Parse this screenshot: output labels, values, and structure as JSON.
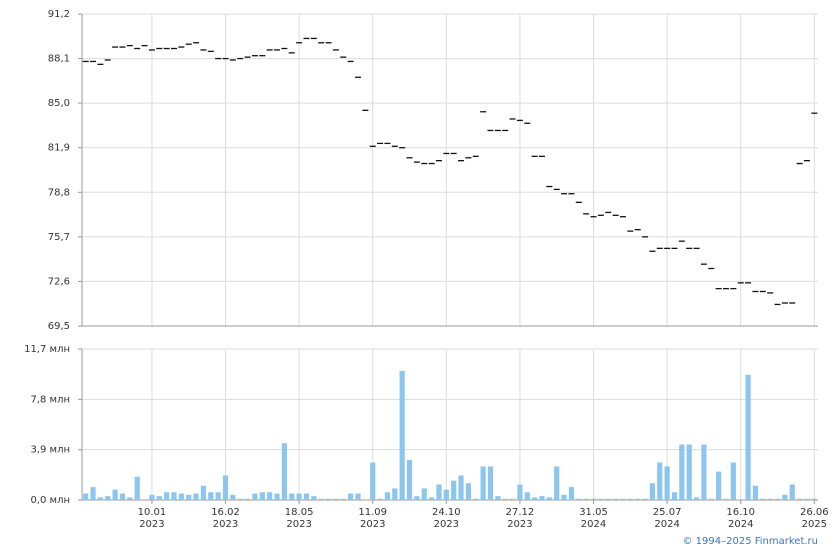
{
  "chart_data": [
    {
      "type": "scatter",
      "color": "#111111",
      "grid": true,
      "ylim": [
        69.5,
        91.2
      ],
      "yticks": [
        {
          "value": 69.5,
          "label": "69,5"
        },
        {
          "value": 72.6,
          "label": "72,6"
        },
        {
          "value": 75.7,
          "label": "75,7"
        },
        {
          "value": 78.8,
          "label": "78,8"
        },
        {
          "value": 81.9,
          "label": "81,9"
        },
        {
          "value": 85.0,
          "label": "85,0"
        },
        {
          "value": 88.1,
          "label": "88,1"
        },
        {
          "value": 91.2,
          "label": "91,2"
        }
      ],
      "values": [
        87.9,
        87.9,
        87.7,
        88.0,
        88.9,
        88.9,
        89.0,
        88.8,
        89.0,
        88.7,
        88.8,
        88.8,
        88.8,
        88.9,
        89.1,
        89.2,
        88.7,
        88.6,
        88.1,
        88.1,
        88.0,
        88.1,
        88.2,
        88.3,
        88.3,
        88.7,
        88.7,
        88.8,
        88.5,
        89.2,
        89.5,
        89.5,
        89.2,
        89.2,
        88.7,
        88.2,
        87.9,
        86.8,
        84.5,
        82.0,
        82.2,
        82.2,
        82.0,
        81.9,
        81.2,
        80.9,
        80.8,
        80.8,
        81.0,
        81.5,
        81.5,
        81.0,
        81.2,
        81.3,
        84.4,
        83.1,
        83.1,
        83.1,
        83.9,
        83.8,
        83.6,
        81.3,
        81.3,
        79.2,
        79.0,
        78.7,
        78.7,
        78.1,
        77.3,
        77.1,
        77.2,
        77.4,
        77.2,
        77.1,
        76.1,
        76.2,
        75.7,
        74.7,
        74.9,
        74.9,
        74.9,
        75.4,
        74.9,
        74.9,
        73.8,
        73.5,
        72.1,
        72.1,
        72.1,
        72.5,
        72.5,
        71.9,
        71.9,
        71.8,
        71.0,
        71.1,
        71.1,
        80.8,
        81.0,
        84.3
      ]
    },
    {
      "type": "bar",
      "color": "#8cc6ee",
      "grid": true,
      "ylim": [
        0,
        11.7
      ],
      "yticks": [
        {
          "value": 0,
          "label": "0,0 млн"
        },
        {
          "value": 3.9,
          "label": "3,9 млн"
        },
        {
          "value": 7.8,
          "label": "7,8 млн"
        },
        {
          "value": 11.7,
          "label": "11,7 млн"
        }
      ],
      "categories": [
        null,
        null,
        null,
        null,
        null,
        null,
        null,
        null,
        null,
        "10.01\n2023",
        null,
        null,
        null,
        null,
        null,
        null,
        null,
        null,
        null,
        "16.02\n2023",
        null,
        null,
        null,
        null,
        null,
        null,
        null,
        null,
        null,
        "18.05\n2023",
        null,
        null,
        null,
        null,
        null,
        null,
        null,
        null,
        null,
        "11.09\n2023",
        null,
        null,
        null,
        null,
        null,
        null,
        null,
        null,
        null,
        "24.10\n2023",
        null,
        null,
        null,
        null,
        null,
        null,
        null,
        null,
        null,
        "27.12\n2023",
        null,
        null,
        null,
        null,
        null,
        null,
        null,
        null,
        null,
        "31.05\n2024",
        null,
        null,
        null,
        null,
        null,
        null,
        null,
        null,
        null,
        "25.07\n2024",
        null,
        null,
        null,
        null,
        null,
        null,
        null,
        null,
        null,
        "16.10\n2024",
        null,
        null,
        null,
        null,
        null,
        null,
        null,
        null,
        null,
        "26.06\n2025"
      ],
      "values": [
        0.5,
        1.0,
        0.2,
        0.3,
        0.8,
        0.5,
        0.2,
        1.8,
        0.05,
        0.4,
        0.3,
        0.6,
        0.6,
        0.5,
        0.4,
        0.5,
        1.1,
        0.6,
        0.6,
        1.9,
        0.4,
        0.1,
        0.1,
        0.5,
        0.6,
        0.6,
        0.5,
        4.4,
        0.5,
        0.5,
        0.5,
        0.3,
        0.1,
        0.1,
        0.1,
        0.1,
        0.5,
        0.5,
        0.05,
        2.9,
        0.1,
        0.6,
        0.9,
        10.0,
        3.1,
        0.3,
        0.9,
        0.2,
        1.2,
        0.8,
        1.5,
        1.9,
        1.3,
        0.1,
        2.6,
        2.6,
        0.3,
        0.1,
        0.1,
        1.2,
        0.6,
        0.2,
        0.3,
        0.2,
        2.6,
        0.4,
        1.0,
        0.1,
        0.1,
        0.1,
        0.1,
        0.1,
        0.1,
        0.1,
        0.1,
        0.1,
        0.1,
        1.3,
        2.9,
        2.6,
        0.6,
        4.3,
        4.3,
        0.2,
        4.3,
        0.1,
        2.2,
        0.1,
        2.9,
        0.05,
        9.7,
        1.1,
        0.1,
        0.1,
        0.1,
        0.4,
        1.2,
        0.1,
        0.1,
        0.1
      ]
    }
  ],
  "footer": "© 1994–2025 Finmarket.ru"
}
